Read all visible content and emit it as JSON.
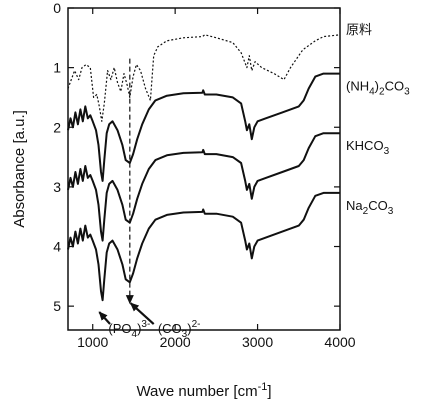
{
  "chart_data": {
    "type": "line",
    "title": "",
    "xlabel": "Wave number [cm",
    "xlabel_sup": "-1",
    "xlabel_end": "]",
    "ylabel": "Absorbance [a.u.]",
    "xlim": [
      700,
      4000
    ],
    "ylim": [
      0,
      5.4
    ],
    "x_inverted": false,
    "y_inverted": true,
    "grid": false,
    "x_ticks": [
      {
        "value": 1000,
        "label": "1000"
      },
      {
        "value": 2000,
        "label": "2000"
      },
      {
        "value": 3000,
        "label": "3000"
      },
      {
        "value": 4000,
        "label": "4000"
      }
    ],
    "y_ticks": [
      {
        "value": 0,
        "label": "0"
      },
      {
        "value": 1,
        "label": "1"
      },
      {
        "value": 2,
        "label": "2"
      },
      {
        "value": 3,
        "label": "3"
      },
      {
        "value": 4,
        "label": "4"
      },
      {
        "value": 5,
        "label": "5"
      }
    ],
    "series": [
      {
        "name": "原料",
        "name_parts": [
          {
            "t": "原料",
            "sub": false
          }
        ],
        "style": "dotted",
        "label_x": 3750,
        "label_y": 0.35,
        "points": [
          [
            700,
            1.35
          ],
          [
            780,
            1.05
          ],
          [
            830,
            1.2
          ],
          [
            870,
            1.0
          ],
          [
            920,
            0.95
          ],
          [
            970,
            1.0
          ],
          [
            1010,
            1.5
          ],
          [
            1050,
            1.45
          ],
          [
            1080,
            1.65
          ],
          [
            1110,
            1.9
          ],
          [
            1140,
            1.6
          ],
          [
            1180,
            1.05
          ],
          [
            1220,
            1.2
          ],
          [
            1260,
            1.0
          ],
          [
            1300,
            1.25
          ],
          [
            1340,
            1.4
          ],
          [
            1380,
            1.1
          ],
          [
            1420,
            1.3
          ],
          [
            1450,
            1.5
          ],
          [
            1490,
            1.15
          ],
          [
            1530,
            0.95
          ],
          [
            1580,
            1.05
          ],
          [
            1640,
            1.35
          ],
          [
            1700,
            1.55
          ],
          [
            1740,
            0.8
          ],
          [
            1790,
            0.65
          ],
          [
            1900,
            0.55
          ],
          [
            2100,
            0.5
          ],
          [
            2330,
            0.48
          ],
          [
            2360,
            0.45
          ],
          [
            2500,
            0.5
          ],
          [
            2700,
            0.58
          ],
          [
            2800,
            0.75
          ],
          [
            2870,
            1.0
          ],
          [
            2900,
            0.8
          ],
          [
            2930,
            1.05
          ],
          [
            2970,
            0.9
          ],
          [
            3050,
            1.0
          ],
          [
            3200,
            1.1
          ],
          [
            3320,
            1.2
          ],
          [
            3400,
            1.0
          ],
          [
            3550,
            0.7
          ],
          [
            3700,
            0.55
          ],
          [
            3800,
            0.48
          ],
          [
            4000,
            0.45
          ]
        ]
      },
      {
        "name": "(NH4)2CO3",
        "name_parts": [
          {
            "t": "(NH",
            "sub": false
          },
          {
            "t": "4",
            "sub": true
          },
          {
            "t": ")",
            "sub": false
          },
          {
            "t": "2",
            "sub": true
          },
          {
            "t": "CO",
            "sub": false
          },
          {
            "t": "3",
            "sub": true
          }
        ],
        "style": "solid",
        "label_x": 3750,
        "label_y": 1.3,
        "points": [
          [
            700,
            2.05
          ],
          [
            730,
            1.85
          ],
          [
            760,
            2.0
          ],
          [
            790,
            1.75
          ],
          [
            820,
            1.95
          ],
          [
            850,
            1.7
          ],
          [
            880,
            1.9
          ],
          [
            910,
            1.65
          ],
          [
            940,
            1.85
          ],
          [
            970,
            1.8
          ],
          [
            1000,
            1.9
          ],
          [
            1040,
            2.05
          ],
          [
            1070,
            2.3
          ],
          [
            1100,
            2.75
          ],
          [
            1120,
            2.9
          ],
          [
            1140,
            2.55
          ],
          [
            1170,
            2.1
          ],
          [
            1200,
            1.95
          ],
          [
            1240,
            1.9
          ],
          [
            1300,
            2.05
          ],
          [
            1360,
            2.3
          ],
          [
            1400,
            2.55
          ],
          [
            1450,
            2.6
          ],
          [
            1490,
            2.45
          ],
          [
            1540,
            2.2
          ],
          [
            1600,
            1.95
          ],
          [
            1680,
            1.7
          ],
          [
            1760,
            1.55
          ],
          [
            1900,
            1.47
          ],
          [
            2100,
            1.43
          ],
          [
            2330,
            1.42
          ],
          [
            2340,
            1.38
          ],
          [
            2360,
            1.45
          ],
          [
            2500,
            1.45
          ],
          [
            2700,
            1.5
          ],
          [
            2800,
            1.6
          ],
          [
            2850,
            1.9
          ],
          [
            2870,
            2.05
          ],
          [
            2900,
            1.95
          ],
          [
            2930,
            2.2
          ],
          [
            2960,
            2.0
          ],
          [
            3000,
            1.9
          ],
          [
            3100,
            1.85
          ],
          [
            3300,
            1.75
          ],
          [
            3500,
            1.65
          ],
          [
            3560,
            1.55
          ],
          [
            3620,
            1.35
          ],
          [
            3700,
            1.15
          ],
          [
            3800,
            1.1
          ],
          [
            4000,
            1.1
          ]
        ]
      },
      {
        "name": "KHCO3",
        "name_parts": [
          {
            "t": "KHCO",
            "sub": false
          },
          {
            "t": "3",
            "sub": true
          }
        ],
        "style": "solid",
        "label_x": 3750,
        "label_y": 2.3,
        "points": [
          [
            700,
            3.05
          ],
          [
            730,
            2.85
          ],
          [
            760,
            3.0
          ],
          [
            790,
            2.75
          ],
          [
            820,
            2.95
          ],
          [
            850,
            2.7
          ],
          [
            880,
            2.9
          ],
          [
            910,
            2.65
          ],
          [
            940,
            2.85
          ],
          [
            970,
            2.8
          ],
          [
            1000,
            2.9
          ],
          [
            1040,
            3.05
          ],
          [
            1070,
            3.3
          ],
          [
            1100,
            3.75
          ],
          [
            1120,
            3.9
          ],
          [
            1140,
            3.55
          ],
          [
            1170,
            3.1
          ],
          [
            1200,
            2.95
          ],
          [
            1240,
            2.9
          ],
          [
            1300,
            3.05
          ],
          [
            1360,
            3.3
          ],
          [
            1400,
            3.55
          ],
          [
            1450,
            3.6
          ],
          [
            1490,
            3.45
          ],
          [
            1540,
            3.2
          ],
          [
            1600,
            2.95
          ],
          [
            1680,
            2.7
          ],
          [
            1760,
            2.55
          ],
          [
            1900,
            2.47
          ],
          [
            2100,
            2.43
          ],
          [
            2330,
            2.42
          ],
          [
            2340,
            2.38
          ],
          [
            2360,
            2.45
          ],
          [
            2500,
            2.45
          ],
          [
            2700,
            2.5
          ],
          [
            2800,
            2.6
          ],
          [
            2850,
            2.9
          ],
          [
            2870,
            3.05
          ],
          [
            2900,
            2.95
          ],
          [
            2930,
            3.2
          ],
          [
            2960,
            3.0
          ],
          [
            3000,
            2.9
          ],
          [
            3100,
            2.85
          ],
          [
            3300,
            2.75
          ],
          [
            3500,
            2.65
          ],
          [
            3560,
            2.55
          ],
          [
            3620,
            2.35
          ],
          [
            3700,
            2.15
          ],
          [
            3800,
            2.1
          ],
          [
            4000,
            2.1
          ]
        ]
      },
      {
        "name": "Na2CO3",
        "name_parts": [
          {
            "t": "Na",
            "sub": false
          },
          {
            "t": "2",
            "sub": true
          },
          {
            "t": "CO",
            "sub": false
          },
          {
            "t": "3",
            "sub": true
          }
        ],
        "style": "solid",
        "label_x": 3750,
        "label_y": 3.3,
        "points": [
          [
            700,
            4.05
          ],
          [
            730,
            3.85
          ],
          [
            760,
            4.0
          ],
          [
            790,
            3.75
          ],
          [
            820,
            3.95
          ],
          [
            850,
            3.7
          ],
          [
            880,
            3.9
          ],
          [
            910,
            3.65
          ],
          [
            940,
            3.85
          ],
          [
            970,
            3.8
          ],
          [
            1000,
            3.9
          ],
          [
            1040,
            4.05
          ],
          [
            1070,
            4.3
          ],
          [
            1100,
            4.75
          ],
          [
            1120,
            4.9
          ],
          [
            1140,
            4.55
          ],
          [
            1170,
            4.1
          ],
          [
            1200,
            3.95
          ],
          [
            1240,
            3.9
          ],
          [
            1300,
            4.05
          ],
          [
            1360,
            4.3
          ],
          [
            1400,
            4.55
          ],
          [
            1450,
            4.6
          ],
          [
            1490,
            4.45
          ],
          [
            1540,
            4.2
          ],
          [
            1600,
            3.95
          ],
          [
            1680,
            3.7
          ],
          [
            1760,
            3.55
          ],
          [
            1900,
            3.47
          ],
          [
            2100,
            3.43
          ],
          [
            2330,
            3.42
          ],
          [
            2340,
            3.38
          ],
          [
            2360,
            3.45
          ],
          [
            2500,
            3.45
          ],
          [
            2700,
            3.5
          ],
          [
            2800,
            3.6
          ],
          [
            2850,
            3.9
          ],
          [
            2870,
            4.05
          ],
          [
            2900,
            3.95
          ],
          [
            2930,
            4.2
          ],
          [
            2960,
            4.0
          ],
          [
            3000,
            3.9
          ],
          [
            3100,
            3.85
          ],
          [
            3300,
            3.75
          ],
          [
            3500,
            3.65
          ],
          [
            3560,
            3.55
          ],
          [
            3620,
            3.35
          ],
          [
            3700,
            3.15
          ],
          [
            3800,
            3.1
          ],
          [
            4000,
            3.1
          ]
        ]
      }
    ],
    "guide_line": {
      "x": 1450,
      "y_from": 0.85,
      "y_to": 4.95,
      "style": "dashed"
    },
    "annotations": [
      {
        "id": "po4",
        "text": "(PO4)3-",
        "parts": [
          {
            "t": "(PO",
            "sub": false
          },
          {
            "t": "4",
            "sub": true
          },
          {
            "t": ")",
            "sub": false
          },
          {
            "t": "3-",
            "sup": true
          }
        ],
        "text_x": 1190,
        "text_y": 5.45,
        "arrow_from": [
          1210,
          5.3
        ],
        "arrow_to": [
          1080,
          5.1
        ]
      },
      {
        "id": "co3",
        "text": "(CO3)2-",
        "parts": [
          {
            "t": "(CO",
            "sub": false
          },
          {
            "t": "3",
            "sub": true
          },
          {
            "t": ")",
            "sub": false
          },
          {
            "t": "2-",
            "sup": true
          }
        ],
        "text_x": 1790,
        "text_y": 5.45,
        "arrow_from": [
          1740,
          5.3
        ],
        "arrow_to": [
          1460,
          4.95
        ]
      }
    ],
    "colors": {
      "axis": "#111111",
      "line": "#111111",
      "background": "#ffffff"
    }
  }
}
